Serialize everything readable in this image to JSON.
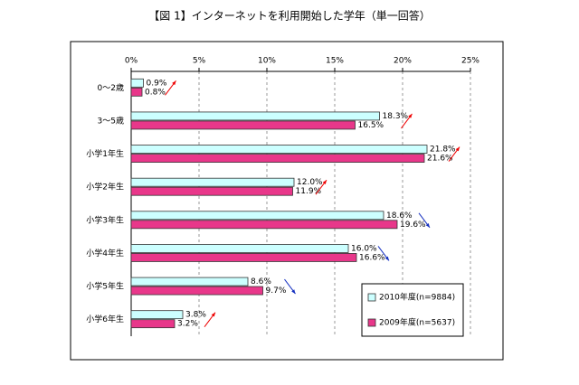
{
  "chart_data": {
    "type": "bar",
    "orientation": "horizontal",
    "title": "【図 1】インターネットを利用開始した学年（単一回答）",
    "categories": [
      "0～2歳",
      "3～5歳",
      "小学1年生",
      "小学2年生",
      "小学3年生",
      "小学4年生",
      "小学5年生",
      "小学6年生"
    ],
    "series": [
      {
        "name": "2010年度(n=9884)",
        "color": "#ccffff",
        "values": [
          0.9,
          18.3,
          21.8,
          12.0,
          18.6,
          16.0,
          8.6,
          3.8
        ],
        "value_labels": [
          "0.9%",
          "18.3%",
          "21.8%",
          "12.0%",
          "18.6%",
          "16.0%",
          "8.6%",
          "3.8%"
        ]
      },
      {
        "name": "2009年度(n=5637)",
        "color": "#e8378a",
        "values": [
          0.8,
          16.5,
          21.6,
          11.9,
          19.6,
          16.6,
          9.7,
          3.2
        ],
        "value_labels": [
          "0.8%",
          "16.5%",
          "21.6%",
          "11.9%",
          "19.6%",
          "16.6%",
          "9.7%",
          "3.2%"
        ]
      }
    ],
    "xlim": [
      0,
      25
    ],
    "xticks": [
      {
        "value": 0,
        "label": "0%"
      },
      {
        "value": 5,
        "label": "5%"
      },
      {
        "value": 10,
        "label": "10%"
      },
      {
        "value": 15,
        "label": "15%"
      },
      {
        "value": 20,
        "label": "20%"
      },
      {
        "value": 25,
        "label": "25%"
      }
    ],
    "grid": true,
    "legend": "lower right"
  }
}
